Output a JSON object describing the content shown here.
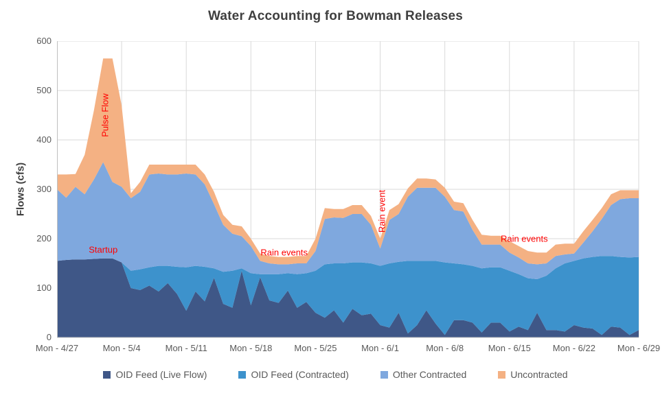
{
  "colors": {
    "live": "#3F5787",
    "contracted": "#3D92CC",
    "other": "#7FA8DE",
    "uncontracted": "#F4B183",
    "annotation": "#FF0000",
    "title_text": "#3F3F3F",
    "axis_text": "#595959",
    "gridline": "#D9D9D9",
    "axis_line": "#BFBFBF"
  },
  "chart_data": {
    "type": "area",
    "stacked": true,
    "title": "Water Accounting for Bowman Releases",
    "ylabel": "Flows (cfs)",
    "xlabel": "",
    "ylim": [
      0,
      600
    ],
    "y_tick_step": 100,
    "grid": true,
    "legend_position": "bottom",
    "x_tick_labels": [
      "Mon - 4/27",
      "Mon - 5/4",
      "Mon - 5/11",
      "Mon - 5/18",
      "Mon - 5/25",
      "Mon - 6/1",
      "Mon - 6/8",
      "Mon - 6/15",
      "Mon - 6/22",
      "Mon - 6/29"
    ],
    "x_tick_day_indices": [
      0,
      7,
      14,
      21,
      28,
      35,
      42,
      49,
      56,
      63
    ],
    "dates": [
      "4/27",
      "4/28",
      "4/29",
      "4/30",
      "5/1",
      "5/2",
      "5/3",
      "5/4",
      "5/5",
      "5/6",
      "5/7",
      "5/8",
      "5/9",
      "5/10",
      "5/11",
      "5/12",
      "5/13",
      "5/14",
      "5/15",
      "5/16",
      "5/17",
      "5/18",
      "5/19",
      "5/20",
      "5/21",
      "5/22",
      "5/23",
      "5/24",
      "5/25",
      "5/26",
      "5/27",
      "5/28",
      "5/29",
      "5/30",
      "5/31",
      "6/1",
      "6/2",
      "6/3",
      "6/4",
      "6/5",
      "6/6",
      "6/7",
      "6/8",
      "6/9",
      "6/10",
      "6/11",
      "6/12",
      "6/13",
      "6/14",
      "6/15",
      "6/16",
      "6/17",
      "6/18",
      "6/19",
      "6/20",
      "6/21",
      "6/22",
      "6/23",
      "6/24",
      "6/25",
      "6/26",
      "6/27",
      "6/28",
      "6/29"
    ],
    "series": [
      {
        "name": "OID Feed (Live Flow)",
        "key": "live",
        "values": [
          155,
          157,
          158,
          158,
          159,
          160,
          160,
          152,
          100,
          96,
          105,
          93,
          110,
          88,
          54,
          93,
          73,
          121,
          68,
          60,
          135,
          65,
          122,
          75,
          70,
          95,
          60,
          72,
          50,
          40,
          55,
          30,
          58,
          45,
          48,
          25,
          20,
          50,
          8,
          25,
          55,
          28,
          5,
          35,
          35,
          30,
          10,
          30,
          30,
          12,
          22,
          15,
          50,
          15,
          15,
          12,
          25,
          20,
          18,
          5,
          22,
          20,
          5,
          15
        ]
      },
      {
        "name": "OID Feed (Contracted)",
        "key": "contracted",
        "values": [
          0,
          0,
          0,
          0,
          0,
          0,
          0,
          0,
          35,
          42,
          37,
          52,
          35,
          55,
          88,
          52,
          70,
          19,
          65,
          75,
          5,
          65,
          6,
          53,
          58,
          35,
          68,
          58,
          85,
          108,
          95,
          120,
          94,
          107,
          102,
          120,
          130,
          103,
          147,
          130,
          100,
          127,
          147,
          115,
          113,
          115,
          130,
          112,
          112,
          123,
          106,
          105,
          68,
          110,
          125,
          138,
          130,
          140,
          145,
          160,
          143,
          143,
          157,
          148
        ]
      },
      {
        "name": "Other Contracted",
        "key": "other",
        "values": [
          145,
          126,
          147,
          132,
          161,
          195,
          155,
          153,
          147,
          157,
          188,
          187,
          185,
          187,
          190,
          185,
          167,
          130,
          95,
          75,
          65,
          55,
          27,
          22,
          20,
          18,
          22,
          20,
          40,
          92,
          93,
          92,
          98,
          98,
          78,
          35,
          88,
          97,
          130,
          148,
          148,
          148,
          133,
          108,
          107,
          73,
          48,
          46,
          46,
          37,
          34,
          30,
          30,
          25,
          25,
          18,
          15,
          32,
          52,
          75,
          103,
          117,
          120,
          119
        ]
      },
      {
        "name": "Uncontracted",
        "key": "uncontracted",
        "values": [
          30,
          47,
          26,
          80,
          140,
          210,
          250,
          165,
          10,
          20,
          20,
          18,
          20,
          20,
          18,
          20,
          20,
          25,
          20,
          18,
          20,
          15,
          15,
          15,
          15,
          15,
          15,
          15,
          25,
          22,
          17,
          18,
          18,
          18,
          18,
          20,
          20,
          20,
          17,
          19,
          19,
          17,
          18,
          17,
          17,
          20,
          20,
          18,
          18,
          23,
          23,
          25,
          24,
          22,
          23,
          22,
          20,
          23,
          23,
          22,
          22,
          18,
          16,
          16
        ]
      }
    ],
    "annotations": [
      {
        "text": "Startup",
        "day": 5.0,
        "value": 178,
        "rotate": 0
      },
      {
        "text": "Pulse Flow",
        "day": 5.2,
        "value": 450,
        "rotate": -90
      },
      {
        "text": "Rain events",
        "day": 24.6,
        "value": 172,
        "rotate": 0
      },
      {
        "text": "Rain event",
        "day": 35.2,
        "value": 255,
        "rotate": -90
      },
      {
        "text": "Rain events",
        "day": 50.6,
        "value": 200,
        "rotate": 0
      }
    ]
  }
}
